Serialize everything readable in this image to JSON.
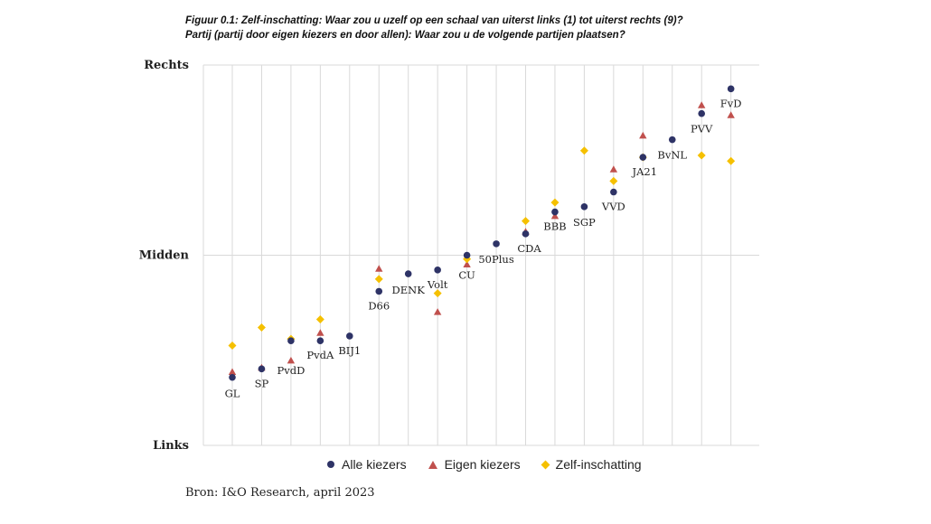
{
  "figure": {
    "title_line1": "Figuur 0.1: Zelf-inschatting: Waar zou u uzelf op een schaal van uiterst links (1) tot uiterst rechts (9)?",
    "title_line2": "Partij (partij door eigen kiezers en door allen): Waar zou u de volgende partijen plaatsen?",
    "source": "Bron: I&O Research, april 2023"
  },
  "colors": {
    "alle": "#2e3366",
    "eigen": "#c0504d",
    "zelf": "#f5c000",
    "grid": "#d9d9d9"
  },
  "chart_data": {
    "type": "scatter",
    "title": "Figuur 0.1: Zelf-inschatting: Waar zou u uzelf op een schaal van uiterst links (1) tot uiterst rechts (9)?",
    "ylim": [
      1,
      9
    ],
    "y_ticks": [
      {
        "value": 1,
        "label": "Links"
      },
      {
        "value": 5,
        "label": "Midden"
      },
      {
        "value": 9,
        "label": "Rechts"
      }
    ],
    "grid": true,
    "legend_position": "bottom",
    "categories": [
      "GL",
      "SP",
      "PvdD",
      "PvdA",
      "BIJ1",
      "D66",
      "DENK",
      "Volt",
      "CU",
      "50Plus",
      "CDA",
      "BBB",
      "SGP",
      "VVD",
      "JA21",
      "BvNL",
      "PVV",
      "FvD"
    ],
    "series": [
      {
        "name": "Alle kiezers",
        "marker": "circle",
        "values": [
          2.43,
          2.61,
          3.2,
          3.2,
          3.3,
          4.24,
          4.61,
          4.69,
          5.0,
          5.24,
          5.45,
          5.91,
          6.02,
          6.33,
          7.06,
          7.43,
          7.98,
          8.5
        ]
      },
      {
        "name": "Eigen kiezers",
        "marker": "triangle",
        "values": [
          2.54,
          2.63,
          2.78,
          3.36,
          null,
          4.71,
          null,
          3.8,
          4.8,
          null,
          5.49,
          5.82,
          null,
          6.8,
          7.51,
          null,
          8.15,
          7.94
        ]
      },
      {
        "name": "Zelf-inschatting",
        "marker": "diamond",
        "values": [
          3.1,
          3.48,
          3.24,
          3.65,
          null,
          4.5,
          null,
          4.2,
          4.92,
          null,
          5.72,
          6.11,
          7.2,
          6.56,
          7.06,
          null,
          7.1,
          6.98
        ]
      }
    ],
    "point_labels": [
      {
        "category": "GL",
        "text": "GL"
      },
      {
        "category": "SP",
        "text": "SP"
      },
      {
        "category": "PvdD",
        "text": "PvdD"
      },
      {
        "category": "PvdA",
        "text": "PvdA"
      },
      {
        "category": "BIJ1",
        "text": "BIJ1"
      },
      {
        "category": "D66",
        "text": "D66"
      },
      {
        "category": "DENK",
        "text": "DENK"
      },
      {
        "category": "Volt",
        "text": "Volt"
      },
      {
        "category": "CU",
        "text": "CU"
      },
      {
        "category": "50Plus",
        "text": "50Plus"
      },
      {
        "category": "CDA",
        "text": "CDA"
      },
      {
        "category": "BBB",
        "text": "BBB"
      },
      {
        "category": "SGP",
        "text": "SGP"
      },
      {
        "category": "VVD",
        "text": "VVD"
      },
      {
        "category": "JA21",
        "text": "JA21"
      },
      {
        "category": "BvNL",
        "text": "BvNL"
      },
      {
        "category": "PVV",
        "text": "PVV"
      },
      {
        "category": "FvD",
        "text": "FvD"
      }
    ]
  }
}
